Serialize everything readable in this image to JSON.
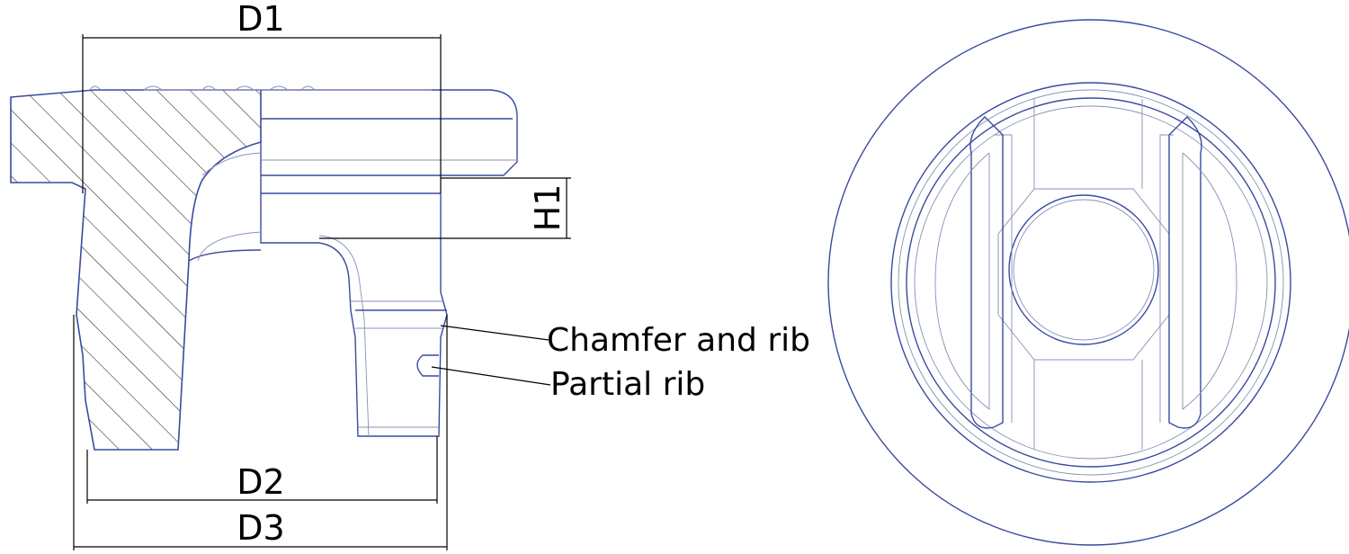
{
  "dimensions": {
    "d1": "D1",
    "d2": "D2",
    "d3": "D3",
    "h1": "H1"
  },
  "callouts": {
    "chamfer": "Chamfer and rib",
    "partial": "Partial rib"
  },
  "colors": {
    "outline": "#3a4aa0",
    "construction": "#8890b8",
    "dimension": "#000000"
  }
}
